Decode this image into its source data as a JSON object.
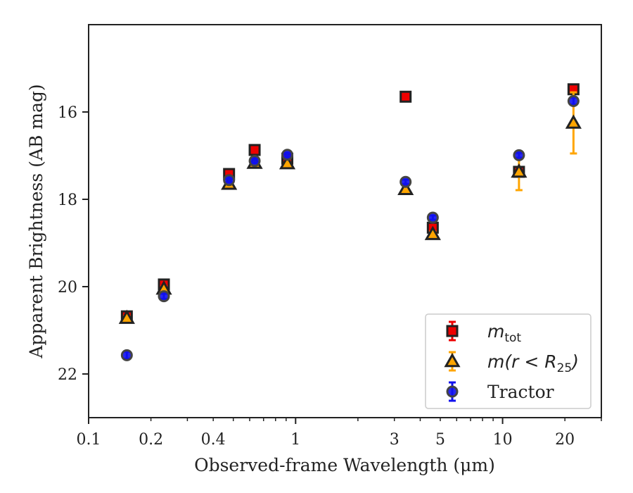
{
  "chart_data": {
    "type": "scatter",
    "title": "",
    "xlabel": "Observed-frame Wavelength (μm)",
    "ylabel": "Apparent Brightness (AB mag)",
    "x_scale": "log",
    "xlim": [
      0.1,
      30
    ],
    "ylim": [
      23.0,
      14.0
    ],
    "y_inverted": true,
    "grid": false,
    "legend_position": "bottom-right",
    "x_ticks": [
      {
        "value": 0.1,
        "label": "0.1"
      },
      {
        "value": 0.2,
        "label": "0.2"
      },
      {
        "value": 0.4,
        "label": "0.4"
      },
      {
        "value": 1,
        "label": "1"
      },
      {
        "value": 3,
        "label": "3"
      },
      {
        "value": 5,
        "label": "5"
      },
      {
        "value": 10,
        "label": "10"
      },
      {
        "value": 20,
        "label": "20"
      }
    ],
    "y_ticks": [
      {
        "value": 16,
        "label": "16"
      },
      {
        "value": 18,
        "label": "18"
      },
      {
        "value": 20,
        "label": "20"
      },
      {
        "value": 22,
        "label": "22"
      }
    ],
    "series": [
      {
        "name": "m_tot",
        "marker": "square",
        "color": "#ee0000",
        "edge": "#222222",
        "error_color": "#ee0000",
        "points": [
          {
            "x": 0.153,
            "y": 20.68,
            "err": 0.05
          },
          {
            "x": 0.231,
            "y": 19.95,
            "err": 0.05
          },
          {
            "x": 0.477,
            "y": 17.42,
            "err": 0.04
          },
          {
            "x": 0.634,
            "y": 16.87,
            "err": 0.04
          },
          {
            "x": 0.912,
            "y": 17.07,
            "err": 0.04
          },
          {
            "x": 3.4,
            "y": 15.65,
            "err": 0.03
          },
          {
            "x": 4.6,
            "y": 18.65,
            "err": 0.05
          },
          {
            "x": 12.0,
            "y": 17.37,
            "err": 0.1
          },
          {
            "x": 22.0,
            "y": 15.48,
            "err": 0.1
          }
        ]
      },
      {
        "name": "m(r < R25)",
        "marker": "triangle",
        "color": "#ffa500",
        "edge": "#222222",
        "error_color": "#ffa500",
        "points": [
          {
            "x": 0.153,
            "y": 20.72,
            "err": 0.05
          },
          {
            "x": 0.231,
            "y": 20.05,
            "err": 0.05
          },
          {
            "x": 0.477,
            "y": 17.65,
            "err": 0.04
          },
          {
            "x": 0.634,
            "y": 17.17,
            "err": 0.04
          },
          {
            "x": 0.912,
            "y": 17.18,
            "err": 0.04
          },
          {
            "x": 3.4,
            "y": 17.77,
            "err": 0.05
          },
          {
            "x": 4.6,
            "y": 18.8,
            "err": 0.06
          },
          {
            "x": 12.0,
            "y": 17.37,
            "err": 0.42
          },
          {
            "x": 22.0,
            "y": 16.25,
            "err": 0.7
          }
        ]
      },
      {
        "name": "Tractor",
        "marker": "circle",
        "color": "#1111ee",
        "edge": "#444444",
        "error_color": "#1111ee",
        "points": [
          {
            "x": 0.153,
            "y": 21.57,
            "err": 0.08
          },
          {
            "x": 0.231,
            "y": 20.22,
            "err": 0.06
          },
          {
            "x": 0.477,
            "y": 17.56,
            "err": 0.05
          },
          {
            "x": 0.634,
            "y": 17.12,
            "err": 0.05
          },
          {
            "x": 0.912,
            "y": 16.98,
            "err": 0.05
          },
          {
            "x": 3.4,
            "y": 17.6,
            "err": 0.05
          },
          {
            "x": 4.6,
            "y": 18.42,
            "err": 0.05
          },
          {
            "x": 12.0,
            "y": 16.99,
            "err": 0.06
          },
          {
            "x": 22.0,
            "y": 15.75,
            "err": 0.08
          }
        ]
      }
    ],
    "legend": [
      {
        "marker": "square",
        "base": "m",
        "subscript": "tot",
        "text": ""
      },
      {
        "marker": "triangle",
        "base": "m(r < R",
        "subscript": "25",
        "suffix": ")",
        "text": ""
      },
      {
        "marker": "circle",
        "base": "",
        "subscript": "",
        "text": "Tractor"
      }
    ]
  }
}
